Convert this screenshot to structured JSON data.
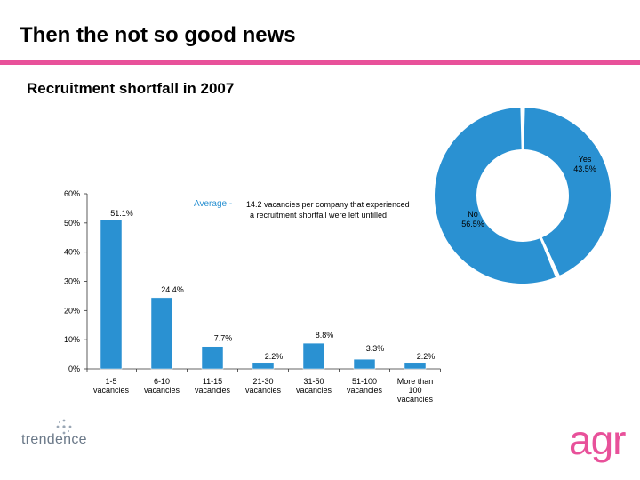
{
  "page": {
    "title": "Then the not so good news",
    "subtitle": "Recruitment shortfall in 2007"
  },
  "colors": {
    "bar": "#2a91d2",
    "donut": "#2a91d2",
    "accent": "#e8519a",
    "bar_border": "#ffffff"
  },
  "chart_data": [
    {
      "type": "bar",
      "categories": [
        [
          "1-5",
          "vacancies"
        ],
        [
          "6-10",
          "vacancies"
        ],
        [
          "11-15",
          "vacancies"
        ],
        [
          "21-30",
          "vacancies"
        ],
        [
          "31-50",
          "vacancies"
        ],
        [
          "51-100",
          "vacancies"
        ],
        [
          "More than",
          "100",
          "vacancies"
        ]
      ],
      "values": [
        51.1,
        24.4,
        7.7,
        2.2,
        8.8,
        3.3,
        2.2
      ],
      "value_labels": [
        "51.1%",
        "24.4%",
        "7.7%",
        "2.2%",
        "8.8%",
        "3.3%",
        "2.2%"
      ],
      "ylim": [
        0,
        60
      ],
      "yticks": [
        0,
        10,
        20,
        30,
        40,
        50,
        60
      ],
      "ytick_labels": [
        "0%",
        "10%",
        "20%",
        "30%",
        "40%",
        "50%",
        "60%"
      ],
      "annotation": {
        "label": "Average -",
        "text_line1": "14.2 vacancies per company that experienced",
        "text_line2": "a recruitment shortfall were left unfilled"
      }
    },
    {
      "type": "pie",
      "style": "donut",
      "slices": [
        {
          "name": "Yes",
          "value": 43.5,
          "label": "43.5%"
        },
        {
          "name": "No",
          "value": 56.5,
          "label": "56.5%"
        }
      ]
    }
  ],
  "logos": {
    "left": "trendence",
    "right": "agr"
  }
}
